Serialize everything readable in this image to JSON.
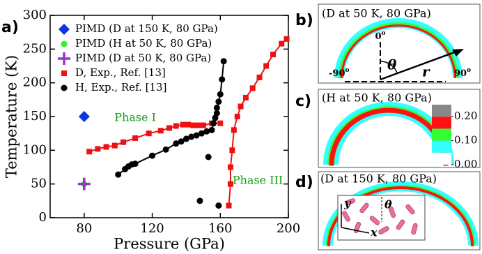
{
  "chart_data": {
    "type": "scatter",
    "panel_label": "a)",
    "x_label": "Pressure (GPa)",
    "y_label": "Temperature (K)",
    "xlim": [
      60,
      200
    ],
    "ylim": [
      0,
      300
    ],
    "xticks": [
      80,
      120,
      160,
      200
    ],
    "yticks": [
      0,
      50,
      100,
      150,
      200,
      250,
      300
    ],
    "annotations": [
      {
        "text": "Phase I",
        "x": 110,
        "y": 148,
        "color": "#1a9a1a"
      },
      {
        "text": "Phase III",
        "x": 182,
        "y": 55,
        "color": "#1a9a1a"
      }
    ],
    "series": [
      {
        "name": "PIMD (D at 150 K, 80 GPa)",
        "color": "#1034e0",
        "marker": "diamond",
        "x": [
          80
        ],
        "values": [
          150
        ]
      },
      {
        "name": "PIMD (H at 50 K, 80 GPa)",
        "color": "#33ee33",
        "marker": "circle",
        "x": [
          80
        ],
        "values": [
          50
        ]
      },
      {
        "name": "PIMD (D at 50 K, 80 GPa)",
        "color": "#9933cc",
        "marker": "plus",
        "x": [
          80
        ],
        "values": [
          50
        ]
      },
      {
        "name": "D, Exp., Ref. [13]",
        "color": "#ee1111",
        "marker": "square",
        "line": true,
        "x": [
          83,
          88,
          93,
          98,
          103,
          110,
          118,
          125,
          130,
          134,
          138,
          141,
          144,
          147,
          150,
          155,
          160,
          null,
          165,
          166,
          166,
          167,
          168,
          170,
          172,
          175,
          179,
          183,
          187,
          191,
          196,
          199
        ],
        "values": [
          98,
          102,
          105,
          107,
          112,
          118,
          125,
          129,
          133,
          136,
          138,
          138,
          137,
          137,
          137,
          140,
          140,
          null,
          18,
          50,
          75,
          100,
          130,
          150,
          165,
          178,
          192,
          208,
          225,
          242,
          258,
          265
        ]
      },
      {
        "name": "H, Exp., Ref. [13]",
        "color": "#000000",
        "marker": "circle",
        "line": true,
        "x": [
          100,
          104,
          106,
          108,
          110,
          120,
          128,
          134,
          137,
          140,
          143,
          146,
          149,
          152,
          155,
          156,
          157,
          158,
          158,
          159,
          160,
          161,
          162,
          null,
          153,
          null,
          148,
          null,
          159
        ],
        "values": [
          64,
          72,
          76,
          79,
          80,
          92,
          101,
          110,
          113,
          117,
          120,
          122,
          125,
          128,
          130,
          140,
          148,
          155,
          163,
          172,
          183,
          205,
          232,
          null,
          90,
          null,
          25,
          null,
          18
        ]
      }
    ]
  },
  "panels": [
    {
      "label": "b)",
      "title": "(D at 50 K, 80 GPa)",
      "top": {
        "text": "0",
        "sup": "o"
      },
      "left": {
        "text": "-90",
        "sup": "o"
      },
      "right": {
        "text": "90",
        "sup": "o"
      },
      "theta": "θ",
      "r": "r"
    },
    {
      "label": "c)",
      "title": "(H at 50 K, 80 GPa)",
      "colorbar": {
        "colors": [
          "#ffffff",
          "#33ffff",
          "#33ff33",
          "#ff1111",
          "#888888"
        ],
        "ticks": [
          {
            "value": 0.2,
            "label": "0.20"
          },
          {
            "value": 0.1,
            "label": "0.10"
          },
          {
            "value": 0.0,
            "label": "0.00"
          }
        ],
        "lim": [
          0.0,
          0.25
        ]
      }
    },
    {
      "label": "d)",
      "title": "(D at 150 K, 80 GPa)",
      "y": "y",
      "theta": "θ",
      "x": "x"
    }
  ]
}
